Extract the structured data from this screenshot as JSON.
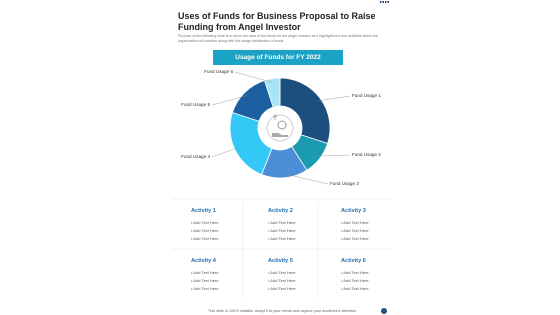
{
  "header": {
    "title": "Uses of Funds for Business Proposal to Raise Funding from Angel Investor",
    "description": "Purpose of the following slide is to show the uses of the funds for the angel investor as it highlights the key activities which the organization will conduct along with the usage distribution of funds."
  },
  "chart": {
    "type": "pie",
    "title": "Usage of Funds for FY 2022",
    "segments": [
      {
        "name": "Fund Usage 1",
        "value": 30,
        "color": "#1d4f7e"
      },
      {
        "name": "Fund Usage 2",
        "value": 11,
        "color": "#1a9bb0"
      },
      {
        "name": "Fund Usage 3",
        "value": 15,
        "color": "#4d8fd6"
      },
      {
        "name": "Fund Usage 4",
        "value": 24,
        "color": "#33c8f5"
      },
      {
        "name": "Fund Usage 5",
        "value": 15,
        "color": "#1b5fa0"
      },
      {
        "name": "Fund Usage 6",
        "value": 5,
        "color": "#a9e4f5"
      }
    ]
  },
  "activities": [
    {
      "title": "Activity 1",
      "items": [
        "Add Text Here",
        "Add Text Here",
        "Add Text Here"
      ]
    },
    {
      "title": "Activity 2",
      "items": [
        "Add Text Here",
        "Add Text Here",
        "Add Text Here"
      ]
    },
    {
      "title": "Activity 3",
      "items": [
        "Add Text Here",
        "Add Text Here",
        "Add Text Here"
      ]
    },
    {
      "title": "Activity 4",
      "items": [
        "Add Text Here",
        "Add Text Here",
        "Add Text Here"
      ]
    },
    {
      "title": "Activity 5",
      "items": [
        "Add Text Here",
        "Add Text Here",
        "Add Text Here"
      ]
    },
    {
      "title": "Activity 6",
      "items": [
        "Add Text Here",
        "Add Text Here",
        "Add Text Here"
      ]
    }
  ],
  "footer": "This slide is 100% editable. Adapt it to your needs and capture your audience's attention."
}
